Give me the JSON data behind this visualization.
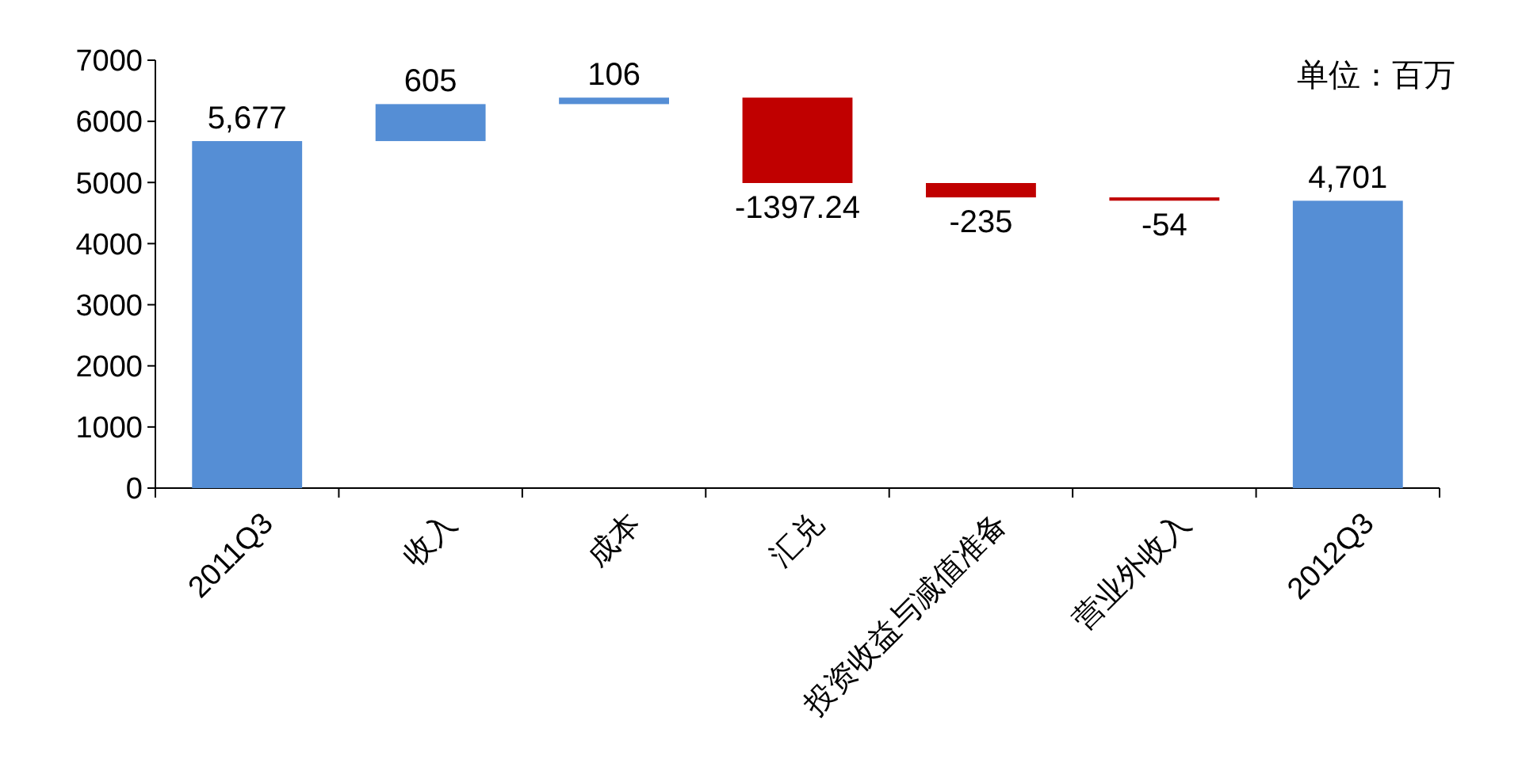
{
  "chart_data": {
    "type": "bar",
    "categories": [
      "2011Q3",
      "收入",
      "成本",
      "汇兑",
      "投资收益与减值准备",
      "营业外收入",
      "2012Q3"
    ],
    "values": [
      5677,
      605,
      106,
      -1397.24,
      -235,
      -54,
      4701
    ],
    "base": [
      0,
      5677,
      6282,
      6388,
      4990.76,
      4755.76,
      0
    ],
    "colors": [
      "#558ed5",
      "#558ed5",
      "#558ed5",
      "#c00000",
      "#c00000",
      "#c00000",
      "#558ed5"
    ],
    "value_labels": [
      "5,677",
      "605",
      "106",
      "-1397.24",
      "-235",
      "-54",
      "4,701"
    ],
    "ylim": [
      0,
      7000
    ],
    "yticks": [
      0,
      1000,
      2000,
      3000,
      4000,
      5000,
      6000,
      7000
    ],
    "grid": false,
    "annotations": [
      "单位：百万"
    ]
  }
}
